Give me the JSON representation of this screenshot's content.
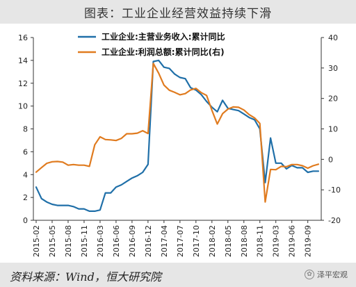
{
  "title": "图表：工业企业经营效益持续下滑",
  "source": "资料来源：Wind，恒大研究院",
  "watermark": "泽平宏观",
  "watermark_icon": "wechat-icon",
  "chart_data": {
    "type": "line",
    "dual_axis": true,
    "grid": false,
    "legend_position": "top-center",
    "x": [
      "2015-02",
      "2015-03",
      "2015-04",
      "2015-05",
      "2015-06",
      "2015-07",
      "2015-08",
      "2015-09",
      "2015-10",
      "2015-11",
      "2015-12",
      "2016-02",
      "2016-03",
      "2016-04",
      "2016-05",
      "2016-06",
      "2016-07",
      "2016-08",
      "2016-09",
      "2016-10",
      "2016-11",
      "2016-12",
      "2017-02",
      "2017-03",
      "2017-04",
      "2017-05",
      "2017-06",
      "2017-07",
      "2017-08",
      "2017-09",
      "2017-10",
      "2017-11",
      "2017-12",
      "2018-02",
      "2018-03",
      "2018-04",
      "2018-05",
      "2018-06",
      "2018-07",
      "2018-08",
      "2018-09",
      "2018-10",
      "2018-11",
      "2018-12",
      "2019-02",
      "2019-03",
      "2019-04",
      "2019-05",
      "2019-06",
      "2019-07",
      "2019-08",
      "2019-09",
      "2019-10",
      "2019-11"
    ],
    "x_tick_labels": [
      "2015-02",
      "2015-05",
      "2015-08",
      "2015-11",
      "2016-03",
      "2016-06",
      "2016-09",
      "2016-12",
      "2017-04",
      "2017-07",
      "2017-10",
      "2018-02",
      "2018-05",
      "2018-08",
      "2018-11",
      "2019-03",
      "2019-06",
      "2019-09"
    ],
    "left_axis": {
      "ylim": [
        0,
        16
      ],
      "ticks": [
        0,
        2,
        4,
        6,
        8,
        10,
        12,
        14,
        16
      ]
    },
    "right_axis": {
      "ylim": [
        -20,
        40
      ],
      "ticks": [
        -20,
        -10,
        0,
        10,
        20,
        30,
        40
      ]
    },
    "series": [
      {
        "name": "工业企业:主营业务收入:累计同比",
        "axis": "left",
        "color": "#1f6fa8",
        "values": [
          2.9,
          1.9,
          1.6,
          1.4,
          1.3,
          1.3,
          1.3,
          1.2,
          1.0,
          1.0,
          0.8,
          0.8,
          0.9,
          2.4,
          2.4,
          2.9,
          3.1,
          3.4,
          3.7,
          3.9,
          4.2,
          4.9,
          13.9,
          14.0,
          13.4,
          13.3,
          12.8,
          12.5,
          12.4,
          11.6,
          11.4,
          11.0,
          10.4,
          9.9,
          9.5,
          10.5,
          9.8,
          9.7,
          9.6,
          9.3,
          9.0,
          8.8,
          8.0,
          3.3,
          7.2,
          5.0,
          5.0,
          4.5,
          4.8,
          4.6,
          4.6,
          4.2,
          4.3,
          4.3
        ]
      },
      {
        "name": "工业企业:利润总额:累计同比(右)",
        "axis": "right",
        "color": "#e07b1f",
        "values": [
          -4.2,
          -2.7,
          -1.3,
          -0.8,
          -0.7,
          -0.9,
          -1.9,
          -1.7,
          -1.9,
          -1.9,
          -2.3,
          4.8,
          7.4,
          6.5,
          6.4,
          6.2,
          6.9,
          8.4,
          8.4,
          8.6,
          9.4,
          8.5,
          31.5,
          28.3,
          24.4,
          22.7,
          22.0,
          21.2,
          21.6,
          22.8,
          23.3,
          21.9,
          21.0,
          16.1,
          11.6,
          15.0,
          16.5,
          17.2,
          17.1,
          16.2,
          14.7,
          13.6,
          11.8,
          -14.0,
          -3.3,
          -3.4,
          -2.3,
          -2.4,
          -1.7,
          -1.7,
          -2.1,
          -2.9,
          -2.1,
          -1.6
        ]
      }
    ]
  }
}
